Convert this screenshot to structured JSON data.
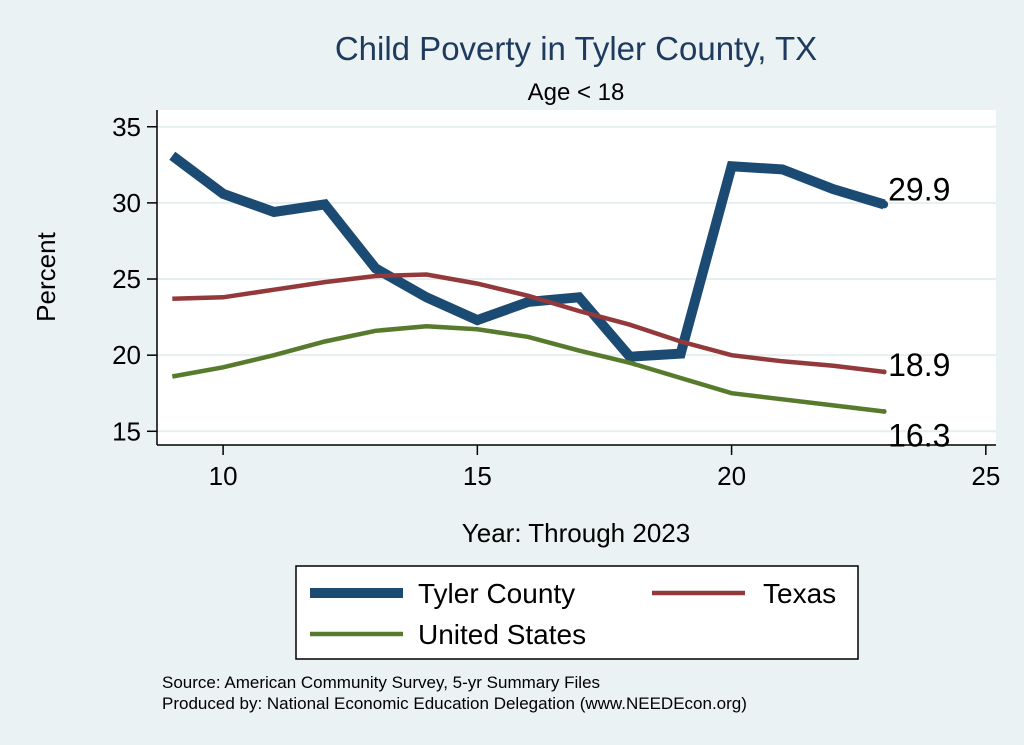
{
  "chart_data": {
    "type": "line",
    "title": "Child Poverty in Tyler County, TX",
    "subtitle": "Age < 18",
    "xlabel": "Year: Through 2023",
    "ylabel": "Percent",
    "xlim": [
      8.7,
      25.2
    ],
    "ylim": [
      14.1,
      36.1
    ],
    "xticks": [
      10,
      15,
      20,
      25
    ],
    "yticks": [
      15,
      20,
      25,
      30,
      35
    ],
    "grid": true,
    "series": [
      {
        "name": "Tyler County",
        "color": "#1b4a72",
        "x": [
          9,
          10,
          11,
          12,
          13,
          14,
          15,
          16,
          17,
          18,
          19,
          20,
          21,
          22,
          23
        ],
        "values": [
          33.1,
          30.6,
          29.4,
          29.9,
          25.7,
          23.8,
          22.3,
          23.5,
          23.8,
          19.9,
          20.1,
          32.4,
          32.2,
          30.9,
          29.9
        ],
        "end_label": "29.9"
      },
      {
        "name": "Texas",
        "color": "#94393b",
        "x": [
          9,
          10,
          11,
          12,
          13,
          14,
          15,
          16,
          17,
          18,
          19,
          20,
          21,
          22,
          23
        ],
        "values": [
          23.7,
          23.8,
          24.3,
          24.8,
          25.2,
          25.3,
          24.7,
          23.9,
          22.9,
          22.0,
          20.9,
          20.0,
          19.6,
          19.3,
          18.9
        ],
        "end_label": "18.9"
      },
      {
        "name": "United States",
        "color": "#577a2d",
        "x": [
          9,
          10,
          11,
          12,
          13,
          14,
          15,
          16,
          17,
          18,
          19,
          20,
          21,
          22,
          23
        ],
        "values": [
          18.6,
          19.2,
          20.0,
          20.9,
          21.6,
          21.9,
          21.7,
          21.2,
          20.3,
          19.5,
          18.5,
          17.5,
          17.1,
          16.7,
          16.3
        ],
        "end_label": "16.3"
      }
    ],
    "legend": [
      "Tyler County",
      "Texas",
      "United States"
    ],
    "legend_position": "bottom"
  },
  "source_line_1": "Source: American Community Survey, 5-yr Summary Files",
  "source_line_2": "Produced by: National Economic Education Delegation (www.NEEDEcon.org)"
}
